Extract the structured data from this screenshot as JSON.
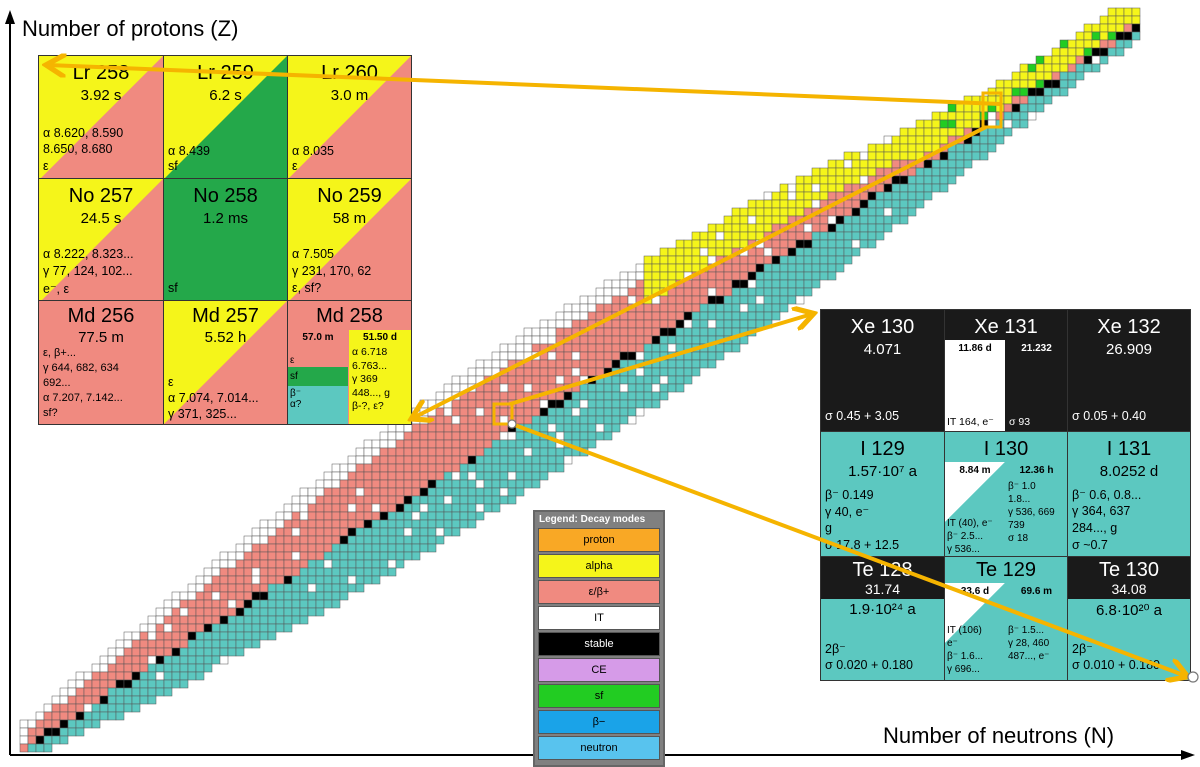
{
  "axes": {
    "y_label": "Number of protons (Z)",
    "x_label": "Number of neutrons (N)"
  },
  "colors": {
    "proton": "#f9a825",
    "alpha": "#f5f51a",
    "ec_beta_plus": "#f08a80",
    "IT": "#ffffff",
    "stable": "#000000",
    "CE": "#d69be8",
    "sf": "#22cc22",
    "beta_minus": "#1aa3e8",
    "neutron": "#58c3ee",
    "chart_teal": "#5cc8c0",
    "arrow": "#f5b400"
  },
  "legend": {
    "title": "Legend: Decay modes",
    "items": [
      {
        "label": "proton",
        "color": "#f9a825"
      },
      {
        "label": "alpha",
        "color": "#f5f51a"
      },
      {
        "label": "ε/β+",
        "color": "#f08a80"
      },
      {
        "label": "IT",
        "color": "#ffffff"
      },
      {
        "label": "stable",
        "color": "#000000",
        "text_color": "#ffffff"
      },
      {
        "label": "CE",
        "color": "#d69be8"
      },
      {
        "label": "sf",
        "color": "#22cc22"
      },
      {
        "label": "β−",
        "color": "#1aa3e8"
      },
      {
        "label": "neutron",
        "color": "#58c3ee"
      }
    ]
  },
  "heavy_inset": {
    "row1": [
      {
        "name": "Lr 258",
        "half_life": "3.92 s",
        "l1": "α 8.620, 8.590",
        "l2": "8.650, 8.680",
        "l3": "ε"
      },
      {
        "name": "Lr 259",
        "half_life": "6.2 s",
        "l1": "α 8.439",
        "l2": "sf"
      },
      {
        "name": "Lr 260",
        "half_life": "3.0 m",
        "l1": "α 8.035",
        "l2": "ε"
      }
    ],
    "row2": [
      {
        "name": "No 257",
        "half_life": "24.5 s",
        "l1": "α 8.222, 8.323...",
        "l2": "γ 77, 124, 102...",
        "l3": "e⁻, ε"
      },
      {
        "name": "No 258",
        "half_life": "1.2 ms",
        "l1": "sf"
      },
      {
        "name": "No 259",
        "half_life": "58 m",
        "l1": "α 7.505",
        "l2": "γ 231, 170, 62",
        "l3": "ε, sf?"
      }
    ],
    "row3": [
      {
        "name": "Md 256",
        "half_life": "77.5 m",
        "l1": "ε, β+...",
        "l2": "γ 644, 682, 634",
        "l3": "692...",
        "l4": "α 7.207, 7.142...",
        "l5": "sf?"
      },
      {
        "name": "Md 257",
        "half_life": "5.52 h",
        "l1": "ε",
        "l2": "α 7.074, 7.014...",
        "l3": "γ 371, 325..."
      },
      {
        "name": "Md 258",
        "iso_a": "57.0 m",
        "iso_b": "51.50 d",
        "a1": "ε",
        "a2": "sf",
        "a3": "β⁻",
        "a4": "α?",
        "b1": "α 6.718",
        "b2": "6.763...",
        "b3": "γ 369",
        "b4": "448..., g",
        "b5": "β-?, ε?"
      }
    ]
  },
  "xenon_inset": {
    "row1": [
      {
        "name": "Xe 130",
        "abundance": "4.071",
        "l1": "σ 0.45 + 3.05"
      },
      {
        "name": "Xe 131",
        "iso_a": "11.86 d",
        "iso_b": "21.232",
        "a1": "IT 164, e⁻",
        "b1": "σ 93"
      },
      {
        "name": "Xe 132",
        "abundance": "26.909",
        "l1": "σ 0.05 + 0.40"
      }
    ],
    "row2": [
      {
        "name": "I 129",
        "half_life": "1.57·10⁷ a",
        "l1": "β⁻ 0.149",
        "l2": "γ 40, e⁻",
        "l3": "g",
        "l4": "σ 17.8 + 12.5"
      },
      {
        "name": "I 130",
        "iso_a": "8.84 m",
        "iso_b": "12.36 h",
        "a1": "IT (40), e⁻",
        "a2": "β⁻ 2.5...",
        "a3": "γ 536...",
        "b1": "β⁻ 1.0",
        "b2": "1.8...",
        "b3": "γ 536, 669",
        "b4": "739",
        "b5": "σ 18"
      },
      {
        "name": "I 131",
        "half_life": "8.0252 d",
        "l1": "β⁻ 0.6, 0.8...",
        "l2": "γ 364, 637",
        "l3": "284..., g",
        "l4": "σ ~0.7"
      }
    ],
    "row3": [
      {
        "name": "Te 128",
        "abundance": "31.74",
        "half_life": "1.9·10²⁴ a",
        "l1": "2β⁻",
        "l2": "σ 0.020 + 0.180"
      },
      {
        "name": "Te 129",
        "iso_a": "33.6 d",
        "iso_b": "69.6 m",
        "a1": "IT (106)",
        "a2": "e⁻",
        "a3": "β⁻ 1.6...",
        "a4": "γ 696...",
        "b1": "β⁻ 1.5...",
        "b2": "γ 28, 460",
        "b3": "487..., e⁻"
      },
      {
        "name": "Te 130",
        "abundance": "34.08",
        "half_life": "6.8·10²⁰ a",
        "l1": "2β⁻",
        "l2": "σ 0.010 + 0.180"
      }
    ]
  }
}
